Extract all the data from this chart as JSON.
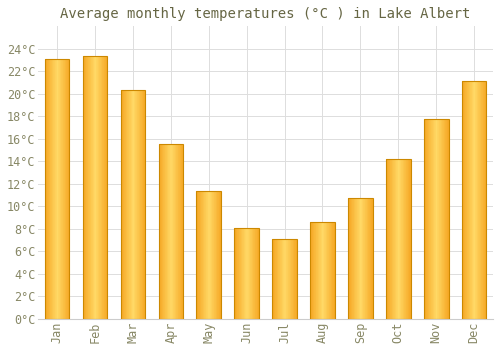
{
  "title": "Average monthly temperatures (°C ) in Lake Albert",
  "months": [
    "Jan",
    "Feb",
    "Mar",
    "Apr",
    "May",
    "Jun",
    "Jul",
    "Aug",
    "Sep",
    "Oct",
    "Nov",
    "Dec"
  ],
  "values": [
    23.1,
    23.4,
    20.3,
    15.5,
    11.4,
    8.1,
    7.1,
    8.6,
    10.7,
    14.2,
    17.8,
    21.1
  ],
  "bar_color_center": "#FFD966",
  "bar_color_edge": "#F5A623",
  "bar_border_color": "#CC8800",
  "background_color": "#FFFFFF",
  "plot_bg_color": "#FFFFFF",
  "grid_color": "#DDDDDD",
  "ylim": [
    0,
    26
  ],
  "yticks": [
    0,
    2,
    4,
    6,
    8,
    10,
    12,
    14,
    16,
    18,
    20,
    22,
    24
  ],
  "title_fontsize": 10,
  "tick_fontsize": 8.5,
  "font_color": "#888866",
  "title_color": "#666644",
  "bar_width": 0.65
}
